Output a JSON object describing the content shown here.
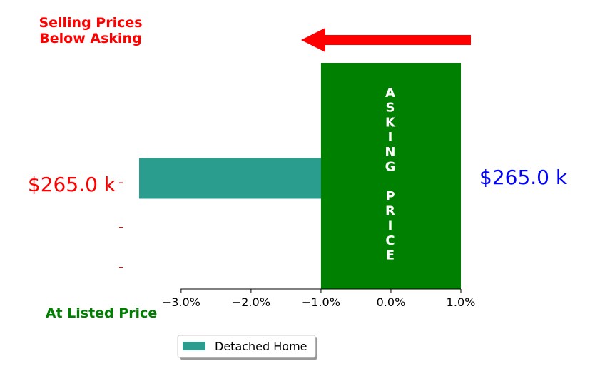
{
  "colors": {
    "bar": "#2a9d8f",
    "asking_band": "#008000",
    "arrow": "#ff0000",
    "top_note": "#ff0000",
    "bottom_note": "#008000",
    "left_value": "#ff0000",
    "right_value": "#0000ff",
    "ytick": "#ff0000"
  },
  "annotations": {
    "top_note_line1": "Selling Prices",
    "top_note_line2": "Below Asking",
    "bottom_note": "At Listed Price",
    "left_value": "$265.0 k",
    "right_value": "$265.0 k",
    "asking_label": "ASKING PRICE"
  },
  "chart_data": {
    "type": "bar",
    "orientation": "horizontal",
    "xlim": [
      -4.0,
      1.0
    ],
    "xticks": [
      -3.0,
      -2.0,
      -1.0,
      0.0,
      1.0
    ],
    "xtick_labels": [
      "−3.0%",
      "−2.0%",
      "−1.0%",
      "0.0%",
      "1.0%"
    ],
    "asking_band": [
      -1.0,
      1.0
    ],
    "series": [
      {
        "name": "Detached Home",
        "values": [
          -3.6,
          0,
          0
        ]
      }
    ],
    "legend": "bottom-center",
    "grid": false
  }
}
